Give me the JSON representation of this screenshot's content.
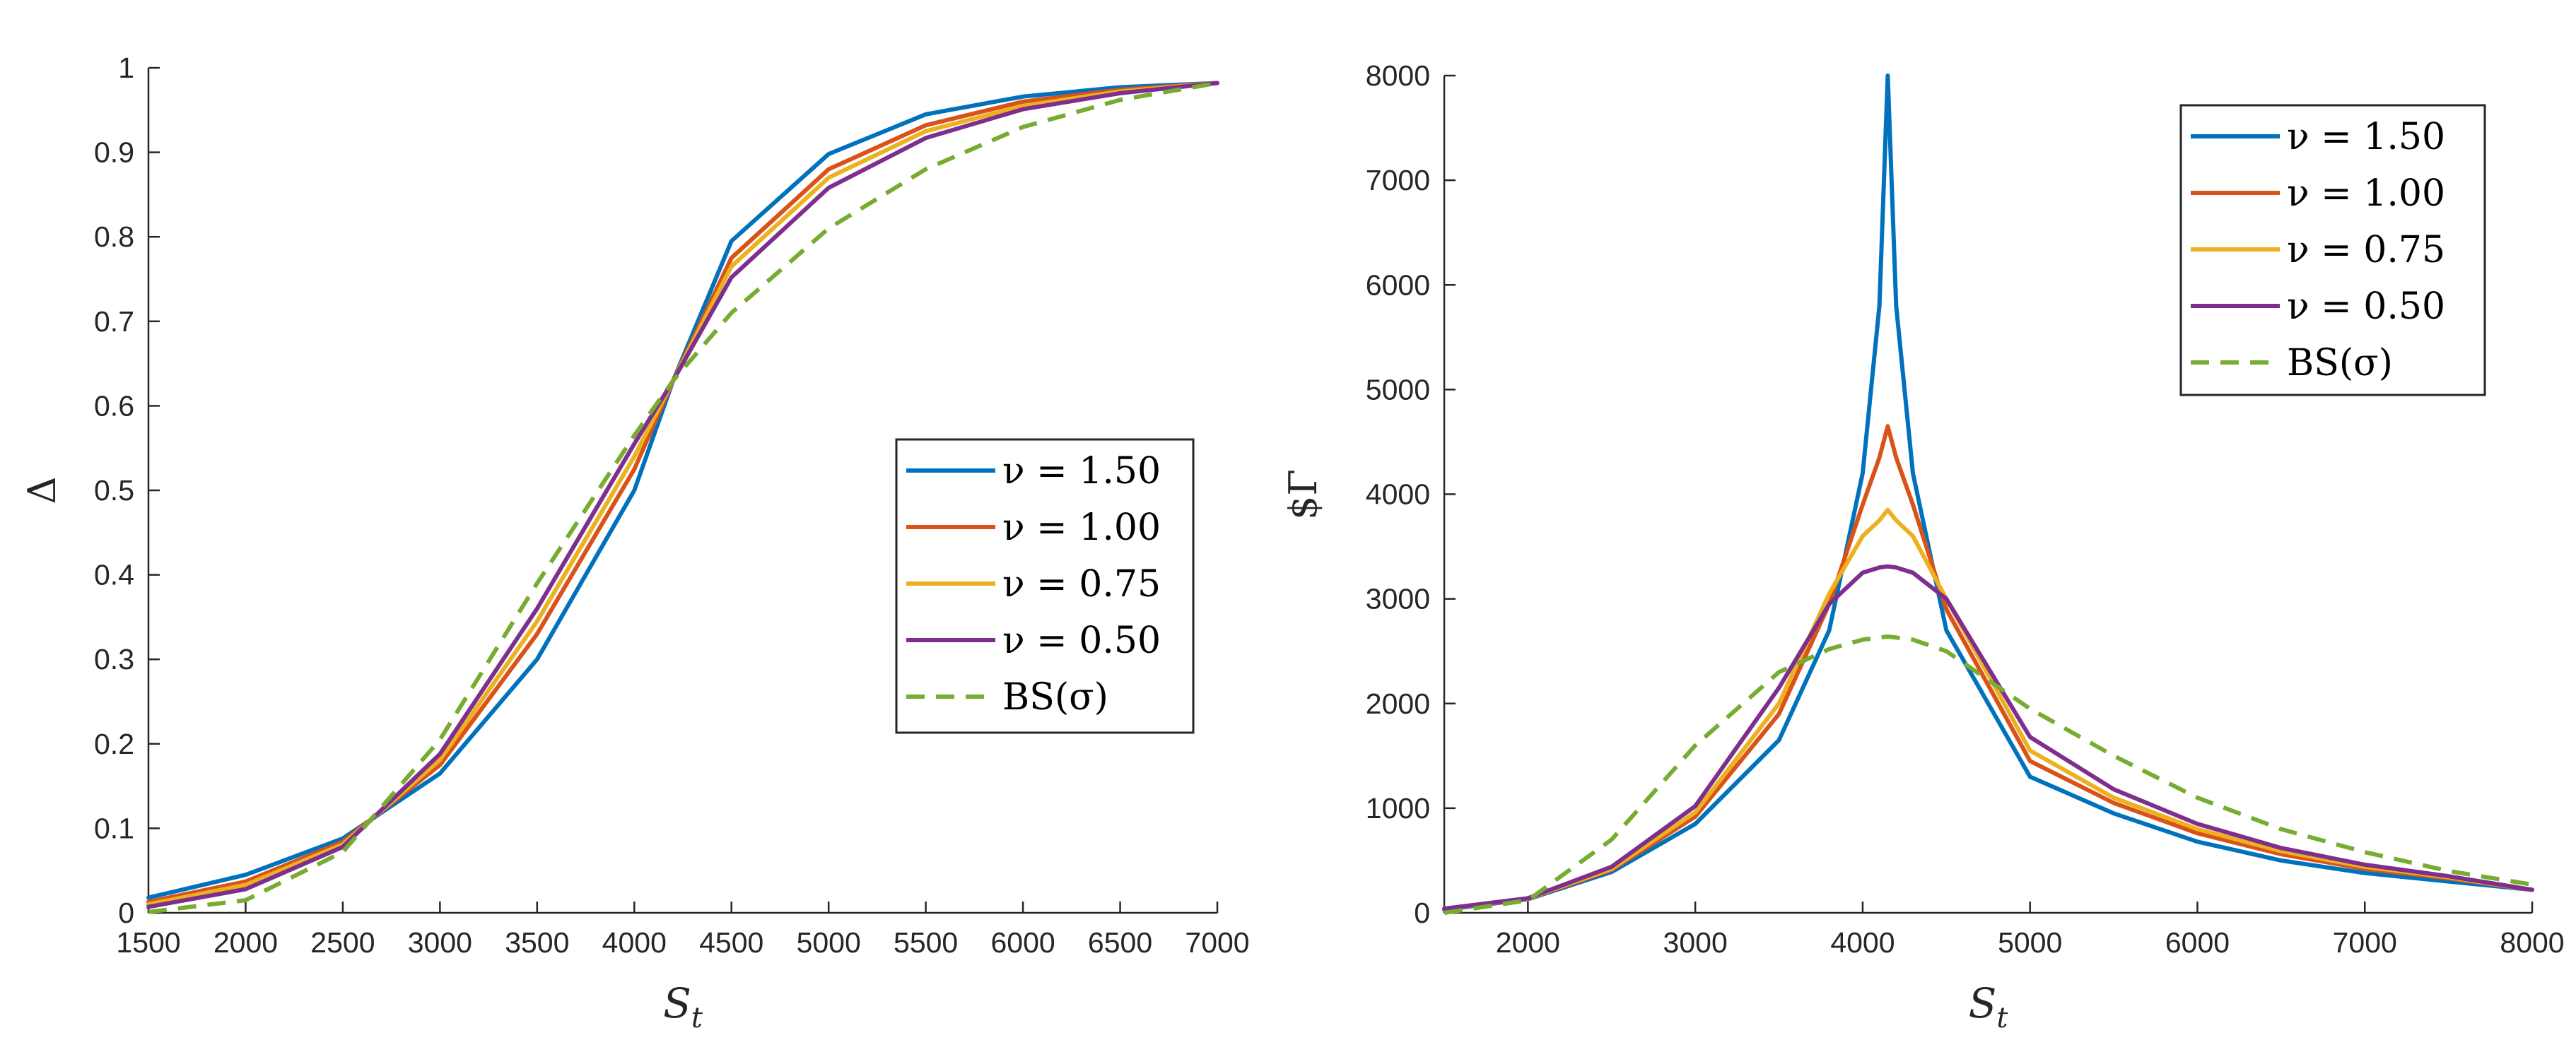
{
  "chart_data": [
    {
      "type": "line",
      "title": "",
      "xlabel": "S_t",
      "ylabel": "Δ",
      "xlim": [
        1500,
        7000
      ],
      "ylim": [
        0,
        1
      ],
      "xticks": [
        1500,
        2000,
        2500,
        3000,
        3500,
        4000,
        4500,
        5000,
        5500,
        6000,
        6500,
        7000
      ],
      "yticks": [
        0,
        0.1,
        0.2,
        0.3,
        0.4,
        0.5,
        0.6,
        0.7,
        0.8,
        0.9,
        1
      ],
      "ytick_labels": [
        "0",
        "0.1",
        "0.2",
        "0.3",
        "0.4",
        "0.5",
        "0.6",
        "0.7",
        "0.8",
        "0.9",
        "1"
      ],
      "grid": false,
      "legend_position": "center-right",
      "x": [
        1500,
        2000,
        2500,
        3000,
        3500,
        4000,
        4200,
        4500,
        5000,
        5500,
        6000,
        6500,
        7000
      ],
      "series": [
        {
          "name": "ν = 1.50",
          "color": "#0072BD",
          "dash": "solid",
          "values": [
            0.018,
            0.045,
            0.088,
            0.165,
            0.3,
            0.5,
            0.63,
            0.795,
            0.898,
            0.945,
            0.966,
            0.977,
            0.982
          ]
        },
        {
          "name": "ν = 1.00",
          "color": "#D95319",
          "dash": "solid",
          "values": [
            0.013,
            0.037,
            0.084,
            0.175,
            0.33,
            0.525,
            0.63,
            0.775,
            0.88,
            0.932,
            0.96,
            0.974,
            0.982
          ]
        },
        {
          "name": "ν = 0.75",
          "color": "#EDB120",
          "dash": "solid",
          "values": [
            0.01,
            0.033,
            0.081,
            0.181,
            0.345,
            0.54,
            0.63,
            0.765,
            0.87,
            0.925,
            0.955,
            0.972,
            0.982
          ]
        },
        {
          "name": "ν = 0.50",
          "color": "#7E2F8E",
          "dash": "solid",
          "values": [
            0.007,
            0.028,
            0.078,
            0.188,
            0.36,
            0.555,
            0.63,
            0.752,
            0.858,
            0.917,
            0.951,
            0.97,
            0.982
          ]
        },
        {
          "name": "BS(σ)",
          "color": "#77AC30",
          "dash": "dashed",
          "values": [
            0.001,
            0.015,
            0.072,
            0.205,
            0.39,
            0.565,
            0.63,
            0.71,
            0.81,
            0.88,
            0.93,
            0.962,
            0.982
          ]
        }
      ]
    },
    {
      "type": "line",
      "title": "",
      "xlabel": "S_t",
      "ylabel": "$Γ",
      "xlim": [
        1500,
        8000
      ],
      "ylim": [
        0,
        8000
      ],
      "xticks": [
        2000,
        3000,
        4000,
        5000,
        6000,
        7000,
        8000
      ],
      "yticks": [
        0,
        1000,
        2000,
        3000,
        4000,
        5000,
        6000,
        7000,
        8000
      ],
      "grid": false,
      "legend_position": "top-right",
      "x": [
        1500,
        2000,
        2500,
        3000,
        3500,
        3800,
        4000,
        4100,
        4150,
        4200,
        4300,
        4500,
        5000,
        5500,
        6000,
        6500,
        7000,
        7500,
        8000
      ],
      "series": [
        {
          "name": "ν = 1.50",
          "color": "#0072BD",
          "dash": "solid",
          "values": [
            30,
            130,
            390,
            850,
            1650,
            2700,
            4200,
            5800,
            8000,
            5800,
            4200,
            2700,
            1300,
            950,
            680,
            500,
            380,
            300,
            220
          ]
        },
        {
          "name": "ν = 1.00",
          "color": "#D95319",
          "dash": "solid",
          "values": [
            35,
            135,
            410,
            920,
            1900,
            2950,
            3900,
            4350,
            4650,
            4350,
            3900,
            2900,
            1450,
            1050,
            760,
            560,
            420,
            330,
            220
          ]
        },
        {
          "name": "ν = 0.75",
          "color": "#EDB120",
          "dash": "solid",
          "values": [
            38,
            138,
            420,
            960,
            2000,
            3050,
            3600,
            3750,
            3850,
            3750,
            3600,
            3000,
            1550,
            1100,
            800,
            590,
            440,
            340,
            220
          ]
        },
        {
          "name": "ν = 0.50",
          "color": "#7E2F8E",
          "dash": "solid",
          "values": [
            40,
            140,
            440,
            1020,
            2150,
            2950,
            3250,
            3300,
            3310,
            3300,
            3250,
            3000,
            1680,
            1180,
            850,
            620,
            460,
            350,
            220
          ]
        },
        {
          "name": "BS(σ)",
          "color": "#77AC30",
          "dash": "dashed",
          "values": [
            0,
            120,
            700,
            1600,
            2300,
            2520,
            2610,
            2630,
            2640,
            2630,
            2610,
            2500,
            1950,
            1500,
            1100,
            800,
            580,
            400,
            270
          ]
        }
      ]
    }
  ]
}
